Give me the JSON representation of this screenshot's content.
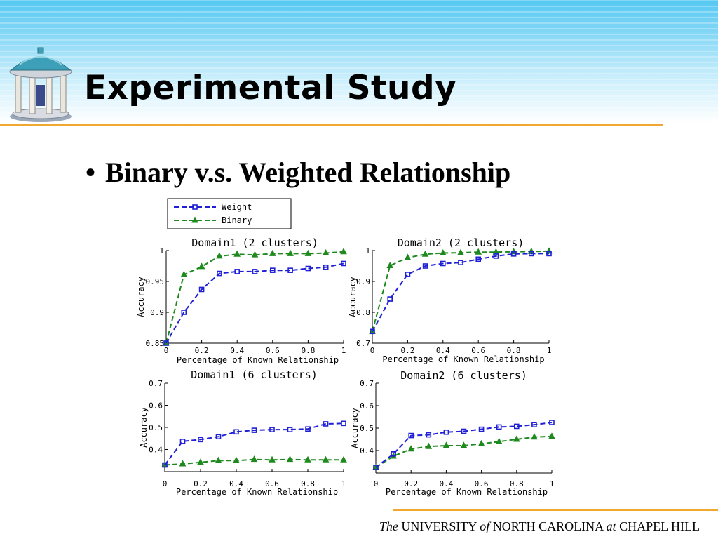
{
  "slide": {
    "title": "Experimental Study",
    "bullet_symbol": "•",
    "bullet": "Binary v.s. Weighted Relationship",
    "footer": {
      "p1": "The",
      "p2": " UNIVERSITY ",
      "p3": "of",
      "p4": " NORTH CAROLINA ",
      "p5": "at",
      "p6": " CHAPEL HILL"
    }
  },
  "legend": {
    "entries": [
      {
        "label": "Weight",
        "color": "#1f1fd6",
        "marker": "square"
      },
      {
        "label": "Binary",
        "color": "#1e8a1e",
        "marker": "triangle"
      }
    ]
  },
  "chart_data": [
    {
      "type": "line",
      "title": "Domain1 (2 clusters)",
      "xlabel": "Percentage of Known Relationship",
      "ylabel": "Accuracy",
      "xlim": [
        0,
        1
      ],
      "ylim": [
        0.85,
        1
      ],
      "xticks": [
        0,
        0.2,
        0.4,
        0.6,
        0.8,
        1
      ],
      "xtick_labels": [
        "0",
        "0.2",
        "0.4",
        "0.6",
        "0.8",
        "1"
      ],
      "yticks": [
        0.85,
        0.9,
        0.95,
        1
      ],
      "ytick_labels": [
        "0.85",
        "0.9",
        "0.95",
        "1"
      ],
      "x": [
        0,
        0.1,
        0.2,
        0.3,
        0.4,
        0.5,
        0.6,
        0.7,
        0.8,
        0.9,
        1
      ],
      "series": [
        {
          "name": "Weight",
          "values": [
            0.85,
            0.9,
            0.937,
            0.963,
            0.966,
            0.966,
            0.968,
            0.968,
            0.971,
            0.973,
            0.979
          ]
        },
        {
          "name": "Binary",
          "values": [
            0.85,
            0.961,
            0.974,
            0.991,
            0.994,
            0.993,
            0.995,
            0.995,
            0.995,
            0.996,
            0.998
          ]
        }
      ]
    },
    {
      "type": "line",
      "title": "Domain2  (2 clusters)",
      "xlabel": "Percentage of Known Relationship",
      "ylabel": "Accuracy",
      "xlim": [
        0,
        1
      ],
      "ylim": [
        0.7,
        1
      ],
      "xticks": [
        0,
        0.2,
        0.4,
        0.6,
        0.8,
        1
      ],
      "xtick_labels": [
        "0",
        "0.2",
        "0.4",
        "0.6",
        "0.8",
        "1"
      ],
      "yticks": [
        0.7,
        0.8,
        0.9,
        1
      ],
      "ytick_labels": [
        "0.7",
        "0.8",
        "0.9",
        "1"
      ],
      "x": [
        0,
        0.1,
        0.2,
        0.3,
        0.4,
        0.5,
        0.6,
        0.7,
        0.8,
        0.9,
        1
      ],
      "series": [
        {
          "name": "Weight",
          "values": [
            0.738,
            0.843,
            0.923,
            0.95,
            0.958,
            0.961,
            0.972,
            0.982,
            0.989,
            0.99,
            0.99
          ]
        },
        {
          "name": "Binary",
          "values": [
            0.738,
            0.951,
            0.977,
            0.988,
            0.992,
            0.993,
            0.995,
            0.995,
            0.996,
            0.997,
            0.998
          ]
        }
      ]
    },
    {
      "type": "line",
      "title": "Domain1  (6 clusters)",
      "xlabel": "Percentage of Known Relationship",
      "ylabel": "Accuracy",
      "xlim": [
        0,
        1
      ],
      "ylim": [
        0.3,
        0.7
      ],
      "xticks": [
        0,
        0.2,
        0.4,
        0.6,
        0.8,
        1
      ],
      "xtick_labels": [
        "0",
        "0.2",
        "0.4",
        "0.6",
        "0.8",
        "1"
      ],
      "yticks": [
        0.4,
        0.5,
        0.6,
        0.7
      ],
      "ytick_labels": [
        "0.4",
        "0.5",
        "0.6",
        "0.7"
      ],
      "x": [
        0,
        0.1,
        0.2,
        0.3,
        0.4,
        0.5,
        0.6,
        0.7,
        0.8,
        0.9,
        1
      ],
      "series": [
        {
          "name": "Weight",
          "values": [
            0.33,
            0.437,
            0.445,
            0.458,
            0.48,
            0.487,
            0.49,
            0.49,
            0.493,
            0.516,
            0.518
          ]
        },
        {
          "name": "Binary",
          "values": [
            0.33,
            0.335,
            0.342,
            0.35,
            0.35,
            0.355,
            0.353,
            0.355,
            0.353,
            0.353,
            0.353
          ]
        }
      ]
    },
    {
      "type": "line",
      "title": "Domain2 (6 clusters)",
      "xlabel": "Percentage of Known  Relationship",
      "ylabel": "Accuracy",
      "xlim": [
        0,
        1
      ],
      "ylim": [
        0.3,
        0.7
      ],
      "xticks": [
        0,
        0.2,
        0.4,
        0.6,
        0.8,
        1
      ],
      "xtick_labels": [
        "0",
        "0.2",
        "0.4",
        "0.6",
        "0.8",
        "1"
      ],
      "yticks": [
        0.4,
        0.5,
        0.6,
        0.7
      ],
      "ytick_labels": [
        "0.4",
        "0.5",
        "0.6",
        "0.7"
      ],
      "x": [
        0,
        0.1,
        0.2,
        0.3,
        0.4,
        0.5,
        0.6,
        0.7,
        0.8,
        0.9,
        1
      ],
      "series": [
        {
          "name": "Weight",
          "values": [
            0.325,
            0.385,
            0.467,
            0.47,
            0.482,
            0.486,
            0.495,
            0.505,
            0.508,
            0.515,
            0.525
          ]
        },
        {
          "name": "Binary",
          "values": [
            0.325,
            0.375,
            0.407,
            0.418,
            0.422,
            0.422,
            0.43,
            0.44,
            0.45,
            0.46,
            0.463
          ]
        }
      ]
    }
  ]
}
